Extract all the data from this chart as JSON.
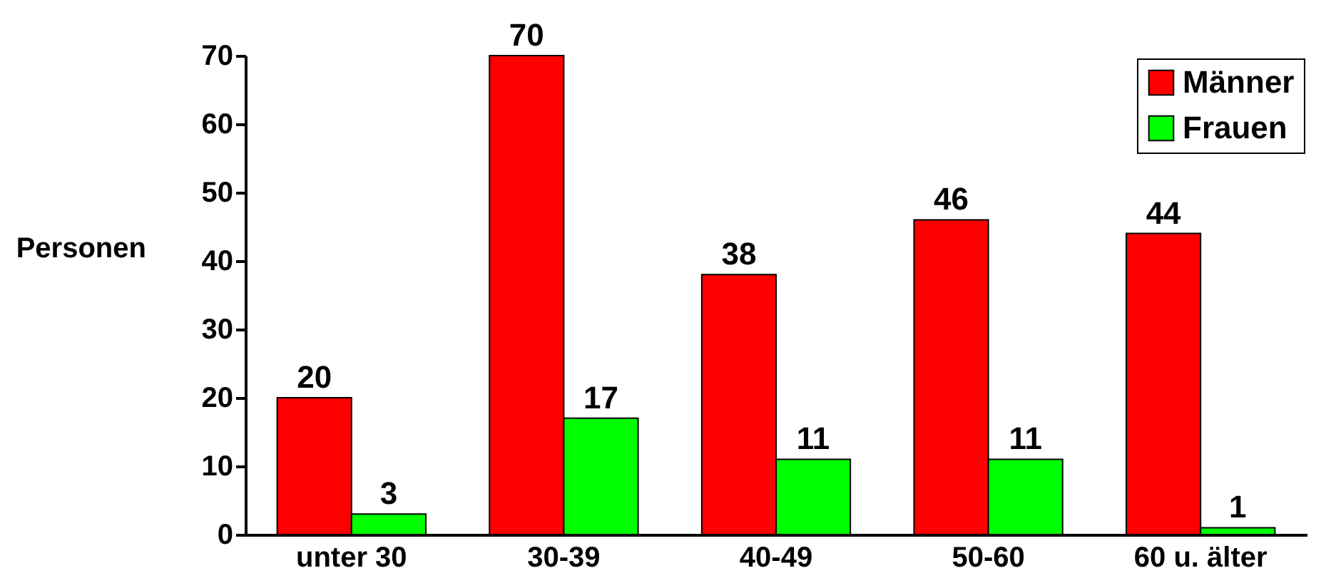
{
  "chart_data": {
    "type": "bar",
    "ylabel": "Personen",
    "categories": [
      "unter 30",
      "30-39",
      "40-49",
      "50-60",
      "60 u. älter"
    ],
    "series": [
      {
        "name": "Männer",
        "color": "#ff0000",
        "values": [
          20,
          70,
          38,
          46,
          44
        ]
      },
      {
        "name": "Frauen",
        "color": "#00ff00",
        "values": [
          3,
          17,
          11,
          11,
          1
        ]
      }
    ],
    "ylim": [
      0,
      70
    ],
    "yticks": [
      0,
      10,
      20,
      30,
      40,
      50,
      60,
      70
    ],
    "data_labels": true,
    "legend": "top right",
    "grid": false
  }
}
